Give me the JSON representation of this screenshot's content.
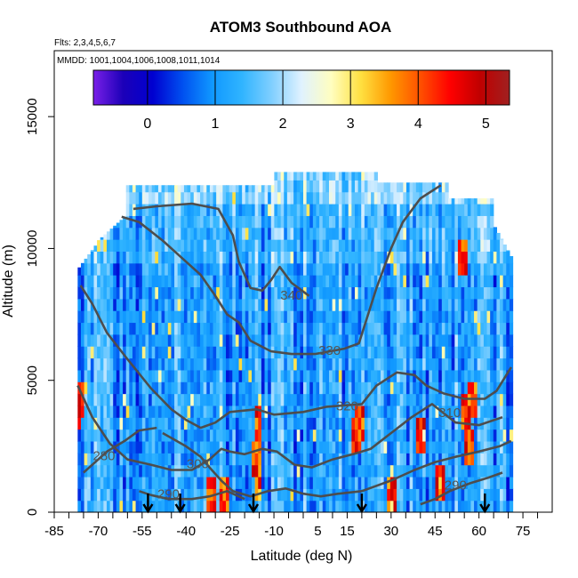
{
  "chart_data": {
    "type": "heatmap",
    "title": "ATOM3 Southbound AOA",
    "flights_note": "Flts: 2,3,4,5,6,7",
    "dates_note": "MMDD: 1001,1004,1006,1008,1011,1014",
    "xlabel": "Latitude (deg N)",
    "ylabel": "Altitude (m)",
    "xlim": [
      -85,
      85
    ],
    "ylim": [
      0,
      17500
    ],
    "x_ticks": [
      -85,
      -70,
      -55,
      -40,
      -25,
      -10,
      5,
      15,
      30,
      45,
      60,
      75
    ],
    "x_minor_ticks": [
      -80,
      -75,
      -65,
      -60,
      -50,
      -45,
      -35,
      -30,
      -20,
      -15,
      -5,
      0,
      10,
      20,
      25,
      35,
      40,
      50,
      55,
      65,
      70,
      80
    ],
    "y_ticks": [
      0,
      5000,
      10000,
      15000
    ],
    "colorbar": {
      "range": [
        -0.8,
        5.35
      ],
      "ticks": [
        0,
        1,
        2,
        3,
        4,
        5
      ],
      "colors": [
        "#7a20e8",
        "#1c00b8",
        "#0000d0",
        "#0050f0",
        "#1098ff",
        "#30b4ff",
        "#80cfff",
        "#e0f2ff",
        "#fffec0",
        "#ffe040",
        "#ff9800",
        "#ff5000",
        "#ff0000",
        "#c00000",
        "#a02020"
      ]
    },
    "arrow_latitudes": [
      -53,
      -42,
      -17,
      20,
      62
    ],
    "contours": [
      {
        "label": "340",
        "label_pos": [
          -4,
          8200
        ],
        "points": [
          [
            -58,
            11500
          ],
          [
            -50,
            11600
          ],
          [
            -38,
            11700
          ],
          [
            -29,
            11500
          ],
          [
            -24,
            10500
          ],
          [
            -22,
            9500
          ],
          [
            -18,
            8500
          ],
          [
            -14,
            8400
          ],
          [
            -11,
            8800
          ],
          [
            -8,
            9300
          ],
          [
            -4,
            8700
          ],
          [
            2,
            8200
          ]
        ]
      },
      {
        "label": "330",
        "label_pos": [
          9,
          6100
        ],
        "points": [
          [
            -62,
            11200
          ],
          [
            -56,
            11000
          ],
          [
            -48,
            10300
          ],
          [
            -42,
            9700
          ],
          [
            -35,
            9000
          ],
          [
            -30,
            8200
          ],
          [
            -26,
            7500
          ],
          [
            -22,
            7200
          ],
          [
            -18,
            6500
          ],
          [
            -11,
            6100
          ],
          [
            -4,
            6000
          ],
          [
            4,
            6000
          ],
          [
            14,
            6200
          ],
          [
            19,
            6400
          ],
          [
            25,
            8500
          ],
          [
            30,
            10000
          ],
          [
            34,
            11000
          ],
          [
            40,
            11900
          ],
          [
            47,
            12400
          ]
        ]
      },
      {
        "label": "320",
        "label_pos": [
          15,
          4000
        ],
        "points": [
          [
            -76,
            8600
          ],
          [
            -72,
            7900
          ],
          [
            -67,
            6800
          ],
          [
            -60,
            5800
          ],
          [
            -52,
            4700
          ],
          [
            -45,
            3900
          ],
          [
            -40,
            3500
          ],
          [
            -35,
            3200
          ],
          [
            -30,
            3400
          ],
          [
            -25,
            3800
          ],
          [
            -16,
            3900
          ],
          [
            -10,
            3700
          ],
          [
            0,
            3800
          ],
          [
            8,
            4000
          ],
          [
            20,
            4100
          ],
          [
            25,
            4800
          ],
          [
            32,
            5300
          ],
          [
            38,
            5200
          ],
          [
            42,
            4800
          ],
          [
            48,
            4500
          ],
          [
            55,
            4300
          ],
          [
            62,
            4300
          ],
          [
            66,
            4600
          ],
          [
            71,
            5500
          ]
        ]
      },
      {
        "label": "310",
        "label_pos": [
          50,
          3750
        ],
        "points": [
          [
            -77,
            4800
          ],
          [
            -72,
            3600
          ],
          [
            -66,
            2600
          ],
          [
            -60,
            2000
          ],
          [
            -52,
            1800
          ],
          [
            -45,
            1600
          ],
          [
            -38,
            1600
          ],
          [
            -32,
            2000
          ],
          [
            -28,
            2400
          ],
          [
            -25,
            2300
          ],
          [
            -20,
            2200
          ],
          [
            -14,
            2400
          ],
          [
            -9,
            2300
          ],
          [
            -3,
            1800
          ],
          [
            3,
            1700
          ],
          [
            10,
            2000
          ],
          [
            17,
            2200
          ],
          [
            23,
            2400
          ],
          [
            30,
            3000
          ],
          [
            37,
            3600
          ],
          [
            44,
            4100
          ],
          [
            52,
            3400
          ],
          [
            60,
            3300
          ],
          [
            68,
            3600
          ]
        ]
      },
      {
        "label": "300",
        "label_pos": [
          -36,
          1800
        ],
        "points": [
          [
            -48,
            3000
          ],
          [
            -40,
            2500
          ],
          [
            -35,
            2100
          ],
          [
            -32,
            1700
          ],
          [
            -28,
            1200
          ],
          [
            -24,
            800
          ],
          [
            -18,
            600
          ],
          [
            -12,
            800
          ],
          [
            -6,
            900
          ],
          [
            0,
            700
          ],
          [
            6,
            600
          ],
          [
            12,
            700
          ],
          [
            20,
            800
          ],
          [
            30,
            1200
          ],
          [
            38,
            1600
          ],
          [
            45,
            1900
          ],
          [
            52,
            2100
          ],
          [
            60,
            2300
          ],
          [
            67,
            2500
          ],
          [
            71,
            2700
          ]
        ]
      },
      {
        "label": "290",
        "label_pos": [
          -46,
          650
        ],
        "points": [
          [
            -56,
            800
          ],
          [
            -52,
            650
          ],
          [
            -46,
            500
          ],
          [
            -38,
            500
          ],
          [
            -32,
            600
          ],
          [
            -26,
            800
          ],
          [
            -20,
            500
          ]
        ]
      },
      {
        "label": "290",
        "label_pos": [
          52,
          1000
        ],
        "points": [
          [
            40,
            300
          ],
          [
            45,
            500
          ],
          [
            50,
            800
          ],
          [
            57,
            1100
          ],
          [
            63,
            1300
          ],
          [
            68,
            1500
          ]
        ]
      },
      {
        "label": "280",
        "label_pos": [
          -68,
          2100
        ],
        "points": [
          [
            -75,
            1500
          ],
          [
            -71,
            1900
          ],
          [
            -67,
            2300
          ],
          [
            -61,
            2700
          ],
          [
            -56,
            3100
          ],
          [
            -50,
            3200
          ]
        ]
      }
    ]
  }
}
